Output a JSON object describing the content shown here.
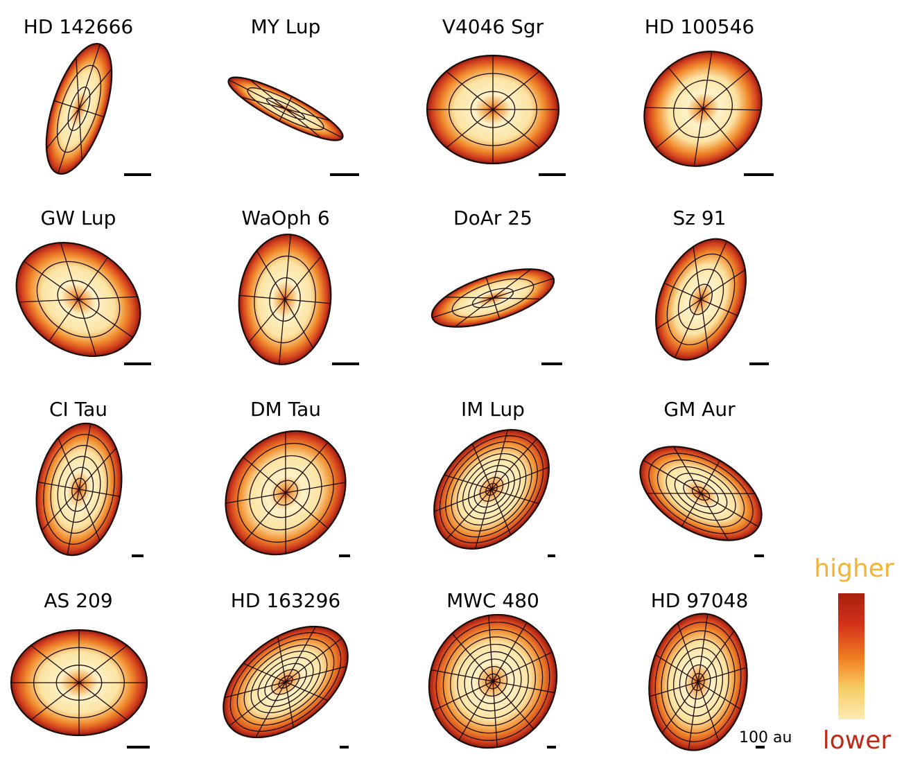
{
  "panels": [
    {
      "name": "HD 142666",
      "rings": 2,
      "spokes": 8
    },
    {
      "name": "MY Lup",
      "rings": 2,
      "spokes": 8
    },
    {
      "name": "V4046 Sgr",
      "rings": 2,
      "spokes": 8
    },
    {
      "name": "HD 100546",
      "rings": 1,
      "spokes": 8
    },
    {
      "name": "GW Lup",
      "rings": 2,
      "spokes": 8
    },
    {
      "name": "WaOph 6",
      "rings": 2,
      "spokes": 8
    },
    {
      "name": "DoAr 25",
      "rings": 2,
      "spokes": 8
    },
    {
      "name": "Sz 91",
      "rings": 3,
      "spokes": 8
    },
    {
      "name": "CI Tau",
      "rings": 5,
      "spokes": 8
    },
    {
      "name": "DM Tau",
      "rings": 4,
      "spokes": 8
    },
    {
      "name": "IM Lup",
      "rings": 9,
      "spokes": 10
    },
    {
      "name": "GM Aur",
      "rings": 6,
      "spokes": 8
    },
    {
      "name": "AS 209",
      "rings": 2,
      "spokes": 8
    },
    {
      "name": "HD 163296",
      "rings": 8,
      "spokes": 10
    },
    {
      "name": "MWC 480",
      "rings": 8,
      "spokes": 10
    },
    {
      "name": "HD 97048",
      "rings": 7,
      "spokes": 10
    }
  ],
  "scale_bar": {
    "label": "100 au"
  },
  "colorbar": {
    "high_label": "higher",
    "low_label": "lower",
    "high_color": "#f3b336",
    "low_color": "#bf2a18",
    "stops": [
      "#fbebb3",
      "#f7cc61",
      "#ef7a1f",
      "#d5321a",
      "#a8200f"
    ]
  }
}
